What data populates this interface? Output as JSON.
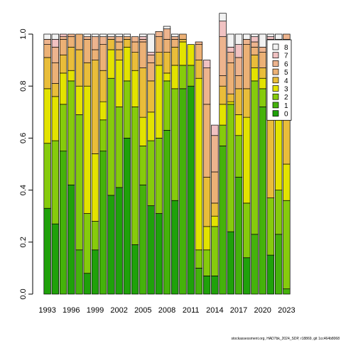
{
  "chart_data": {
    "type": "bar",
    "stacked": true,
    "categories": [
      "1993",
      "1994",
      "1995",
      "1996",
      "1997",
      "1998",
      "1999",
      "2000",
      "2001",
      "2002",
      "2003",
      "2004",
      "2005",
      "2006",
      "2007",
      "2008",
      "2009",
      "2010",
      "2011",
      "2012",
      "2013",
      "2014",
      "2015",
      "2016",
      "2017",
      "2018",
      "2019",
      "2020",
      "2021",
      "2022",
      "2023"
    ],
    "x_tick_labels": [
      "1993",
      "1996",
      "1999",
      "2002",
      "2005",
      "2008",
      "2011",
      "2014",
      "2017",
      "2020",
      "2023"
    ],
    "ylim": [
      0,
      1
    ],
    "y_ticks": [
      0.0,
      0.2,
      0.4,
      0.6,
      0.8,
      1.0
    ],
    "y_tick_labels": [
      "0.0",
      "0.2",
      "0.4",
      "0.6",
      "0.8",
      "1.0"
    ],
    "legend_position": "top-right",
    "grid": false,
    "series": [
      {
        "name": "0",
        "color": "#1fa10a",
        "values": [
          0.33,
          0.27,
          0.0,
          0.42,
          0.0,
          0.08,
          0.17,
          0.0,
          0.38,
          0.41,
          0.6,
          0.19,
          0.0,
          0.34,
          0.31,
          0.0,
          0.36,
          0.0,
          0.8,
          0.0,
          0.07,
          0.07,
          0.0,
          0.24,
          0.0,
          0.14,
          0.0,
          0.0,
          0.15,
          0.0,
          0.0
        ]
      },
      {
        "name": "1",
        "color": "#45b20b",
        "values": [
          0.0,
          0.0,
          0.55,
          0.0,
          0.17,
          0.0,
          0.0,
          0.55,
          0.0,
          0.0,
          0.0,
          0.0,
          0.42,
          0.0,
          0.0,
          0.63,
          0.0,
          0.79,
          0.0,
          0.1,
          0.0,
          0.0,
          0.57,
          0.0,
          0.45,
          0.0,
          0.23,
          0.72,
          0.0,
          0.23,
          0.02
        ]
      },
      {
        "name": "2",
        "color": "#86cb0c",
        "values": [
          0.25,
          0.32,
          0.18,
          0.4,
          0.52,
          0.23,
          0.11,
          0.12,
          0.45,
          0.31,
          0.22,
          0.53,
          0.15,
          0.25,
          0.29,
          0.19,
          0.43,
          0.09,
          0.08,
          0.07,
          0.1,
          0.19,
          0.08,
          0.49,
          0.16,
          0.21,
          0.59,
          0.07,
          0.22,
          0.17,
          0.34
        ]
      },
      {
        "name": "3",
        "color": "#e3e300",
        "values": [
          0.21,
          0.17,
          0.12,
          0.04,
          0.11,
          0.49,
          0.26,
          0.07,
          0.11,
          0.18,
          0.13,
          0.14,
          0.11,
          0.11,
          0.28,
          0.03,
          0.09,
          0.09,
          0.08,
          0.66,
          0.09,
          0.04,
          0.08,
          0.01,
          0.08,
          0.33,
          0.05,
          0.04,
          0.0,
          0.33,
          0.14
        ]
      },
      {
        "name": "4",
        "color": "#e9bd3a",
        "values": [
          0.12,
          0.05,
          0.07,
          0.09,
          0.14,
          0.09,
          0.36,
          0.12,
          0.04,
          0.04,
          0.03,
          0.07,
          0.19,
          0.12,
          0.05,
          0.08,
          0.07,
          0.01,
          0.0,
          0.07,
          0.19,
          0.05,
          0.07,
          0.03,
          0.1,
          0.11,
          0.05,
          0.04,
          0.55,
          0.16,
          0.38
        ]
      },
      {
        "name": "5",
        "color": "#ecb176",
        "values": [
          0.05,
          0.08,
          0.06,
          0.04,
          0.06,
          0.09,
          0.04,
          0.1,
          0.0,
          0.03,
          0.01,
          0.04,
          0.1,
          0.07,
          0.06,
          0.05,
          0.03,
          0.02,
          0.0,
          0.06,
          0.28,
          0.12,
          0.04,
          0.12,
          0.05,
          0.17,
          0.03,
          0.06,
          0.04,
          0.08,
          0.1
        ]
      },
      {
        "name": "6",
        "color": "#edb48e",
        "values": [
          0.02,
          0.06,
          0.01,
          0.01,
          0.0,
          0.01,
          0.05,
          0.03,
          0.01,
          0.02,
          0.0,
          0.02,
          0.01,
          0.03,
          0.02,
          0.04,
          0.01,
          0.0,
          0.0,
          0.01,
          0.14,
          0.14,
          0.15,
          0.04,
          0.07,
          0.02,
          0.02,
          0.02,
          0.02,
          0.01,
          0.02
        ]
      },
      {
        "name": "7",
        "color": "#f1c2c2",
        "values": [
          0.0,
          0.03,
          0.01,
          0.0,
          0.0,
          0.0,
          0.0,
          0.0,
          0.0,
          0.0,
          0.0,
          0.0,
          0.01,
          0.01,
          0.0,
          0.0,
          0.0,
          0.0,
          0.0,
          0.0,
          0.03,
          0.04,
          0.06,
          0.02,
          0.05,
          0.0,
          0.02,
          0.0,
          0.01,
          0.0,
          0.0
        ]
      },
      {
        "name": "8",
        "color": "#f2f2f2",
        "values": [
          0.02,
          0.02,
          0.0,
          0.0,
          0.0,
          0.01,
          0.01,
          0.01,
          0.01,
          0.01,
          0.01,
          0.0,
          0.01,
          0.07,
          0.0,
          0.01,
          0.01,
          0.0,
          0.0,
          0.0,
          0.0,
          0.0,
          0.03,
          0.05,
          0.04,
          0.02,
          0.01,
          0.05,
          0.01,
          0.02,
          0.0
        ]
      }
    ]
  },
  "footnote": "stockassessment.org, HAD7bk_2024_SDP, r18869, git 1cc464b8068"
}
